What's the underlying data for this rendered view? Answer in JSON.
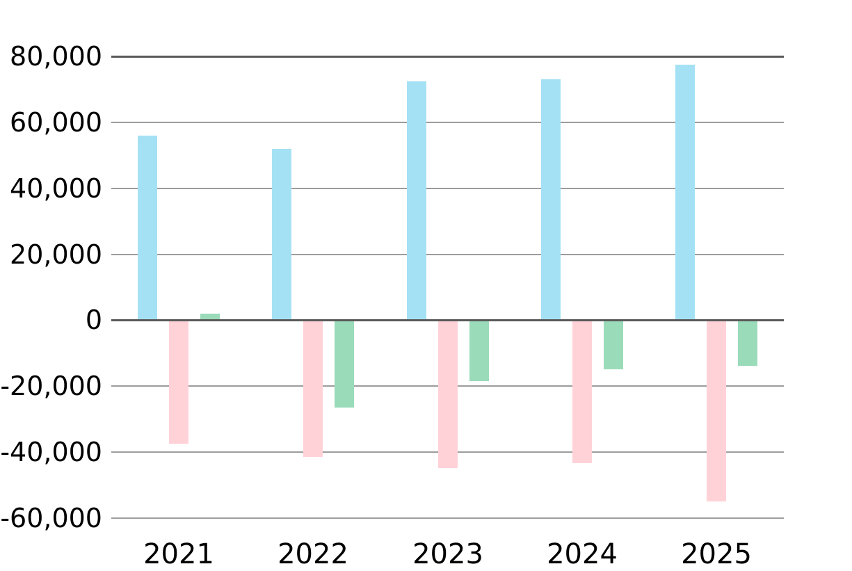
{
  "chart_data": {
    "type": "bar",
    "title": "",
    "xlabel": "",
    "ylabel": "",
    "categories": [
      "2021",
      "2022",
      "2023",
      "2024",
      "2025"
    ],
    "series": [
      {
        "name": "series-blue",
        "color": "#A5E1F5",
        "values": [
          56000,
          52000,
          72500,
          73000,
          77500
        ]
      },
      {
        "name": "series-pink",
        "color": "#FFD2D8",
        "values": [
          -37500,
          -41500,
          -45000,
          -43500,
          -55000
        ]
      },
      {
        "name": "series-green",
        "color": "#9ADBB9",
        "values": [
          2000,
          -26500,
          -18500,
          -15000,
          -14000
        ]
      }
    ],
    "ylim": [
      -60000,
      80000
    ],
    "ytick_interval": 20000,
    "yticks": [
      {
        "value": 80000,
        "label": "80,000"
      },
      {
        "value": 60000,
        "label": "60,000"
      },
      {
        "value": 40000,
        "label": "40,000"
      },
      {
        "value": 20000,
        "label": "20,000"
      },
      {
        "value": 0,
        "label": "0"
      },
      {
        "value": -20000,
        "label": "-20,000"
      },
      {
        "value": -40000,
        "label": "-40,000"
      },
      {
        "value": -60000,
        "label": "-60,000"
      }
    ],
    "grid": true,
    "legend": "none",
    "colors": {
      "background": "#FFFFFF",
      "gridline": "#9C9C9C",
      "axis": "#595959",
      "text": "#000000"
    }
  }
}
